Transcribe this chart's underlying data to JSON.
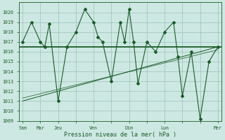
{
  "xlabel": "Pression niveau de la mer( hPa )",
  "background_color": "#cde8e2",
  "grid_color": "#9bbfba",
  "line_color": "#1a5c28",
  "ylim": [
    1009,
    1021
  ],
  "yticks": [
    1009,
    1010,
    1011,
    1012,
    1013,
    1014,
    1015,
    1016,
    1017,
    1018,
    1019,
    1020
  ],
  "xtick_labels": [
    "Sam",
    "Mar",
    "Jeu",
    "",
    "Ven",
    "",
    "Dim",
    "",
    "Lun",
    "",
    "",
    "Mer"
  ],
  "xtick_positions": [
    0,
    1,
    2,
    3,
    4,
    5,
    6,
    7,
    8,
    9,
    10,
    11
  ],
  "series1_x": [
    0,
    0.5,
    1,
    1.25,
    1.5,
    2,
    2.5,
    3,
    3.5,
    4,
    4.25,
    4.5,
    5,
    5.5,
    5.75,
    6,
    6.25,
    6.5,
    7,
    7.5,
    8,
    8.5,
    8.75,
    9,
    9.5,
    10,
    10.5,
    11
  ],
  "series1_y": [
    1017,
    1019,
    1017,
    1016.5,
    1018.8,
    1011,
    1016.5,
    1018,
    1020.3,
    1019,
    1017.5,
    1017,
    1013,
    1019,
    1017,
    1020.3,
    1017,
    1012.8,
    1017,
    1016,
    1018,
    1019,
    1015.5,
    1011.5,
    1016,
    1009.2,
    1015,
    1016.5
  ],
  "hline_y": 1016.5,
  "trend_x": [
    0,
    11
  ],
  "trend_y": [
    1011,
    1016.5
  ],
  "trend2_x": [
    0,
    11
  ],
  "trend2_y": [
    1011.3,
    1016.2
  ]
}
